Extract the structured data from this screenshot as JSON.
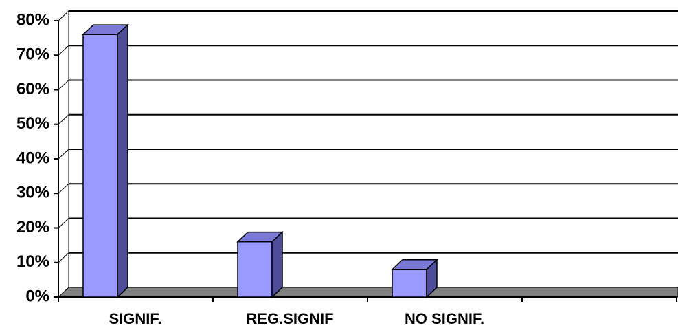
{
  "chart_data": {
    "type": "bar3d",
    "categories": [
      "SIGNIF.",
      "REG.SIGNIF",
      "NO SIGNIF.",
      null
    ],
    "values": [
      76,
      16,
      8,
      null
    ],
    "colors": {
      "front": "#9999ff",
      "top": "#7a7ad6",
      "side": "#4d4d99",
      "floor": "#808080"
    },
    "ylim": [
      0,
      80
    ],
    "yticks": [
      {
        "value": 0,
        "label": "0%"
      },
      {
        "value": 10,
        "label": "10%"
      },
      {
        "value": 20,
        "label": "20%"
      },
      {
        "value": 30,
        "label": "30%"
      },
      {
        "value": 40,
        "label": "40%"
      },
      {
        "value": 50,
        "label": "50%"
      },
      {
        "value": 60,
        "label": "60%"
      },
      {
        "value": 70,
        "label": "70%"
      },
      {
        "value": 80,
        "label": "80%"
      }
    ],
    "grid": true
  }
}
